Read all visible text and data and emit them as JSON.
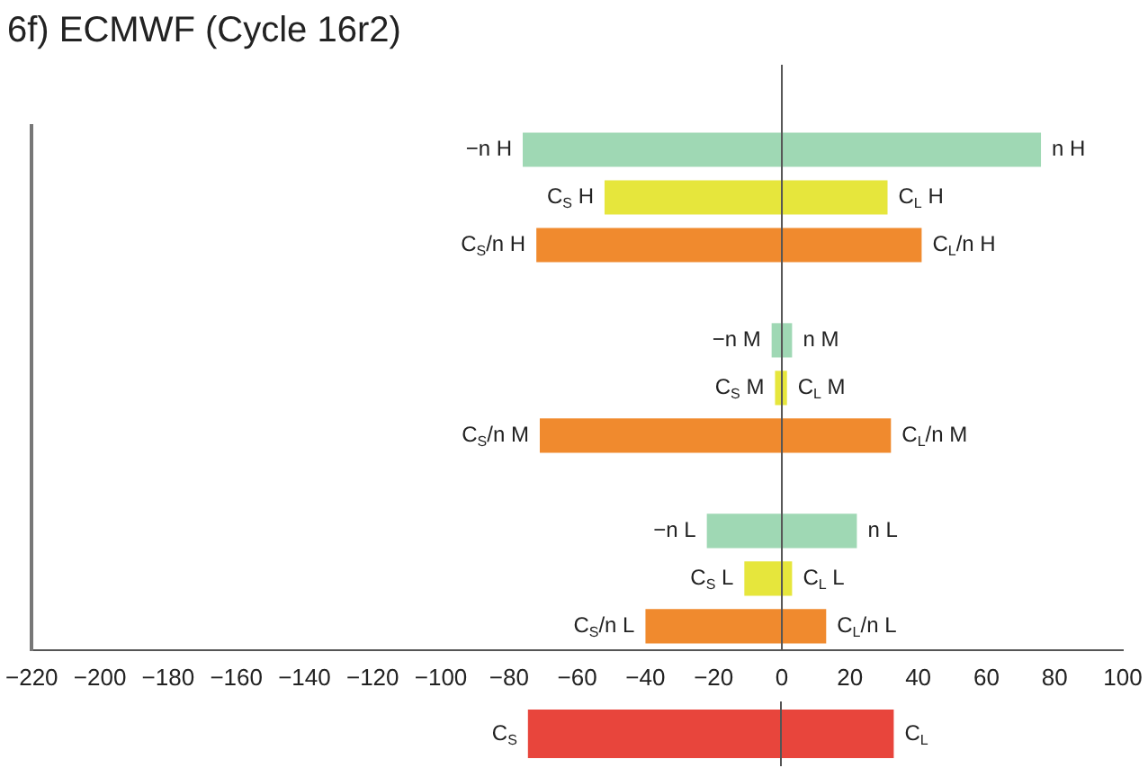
{
  "chart_data": [
    {
      "type": "bar",
      "title": "6f) ECMWF (Cycle 16r2)",
      "orientation": "horizontal",
      "categories": [
        "−n H",
        "C$_{S}$ H",
        "C$_{S}$/n H",
        null,
        "−n M",
        "C$_{S}$ M",
        "C$_{S}$/n M",
        null,
        "−n L",
        "C$_{S}$ L",
        "C$_{S}$/n L"
      ],
      "base": [
        -76,
        -52,
        -72,
        null,
        -3,
        -2,
        -71,
        null,
        -22,
        -11,
        -40
      ],
      "values": [
        152,
        83,
        113,
        null,
        6,
        3.5,
        103,
        null,
        44,
        14,
        53
      ],
      "colors": [
        "#9fd8b4",
        "#e6e63c",
        "#f08a2e",
        "#ffffff",
        "#9fd8b4",
        "#e6e63c",
        "#f08a2e",
        "#ffffff",
        "#9fd8b4",
        "#e6e63c",
        "#f08a2e"
      ],
      "value_labels": [
        "n H",
        "C$_{L}$ H",
        "C$_{L}$/n H",
        null,
        "n M",
        "C$_{L}$ M",
        "C$_{L}$/n M",
        null,
        "n L",
        "C$_{L}$ L",
        "C$_{L}$/n L"
      ],
      "xlim": [
        -220,
        100
      ],
      "xticks": [
        -220,
        -200,
        -180,
        -160,
        -140,
        -120,
        -100,
        -80,
        -60,
        -40,
        -20,
        0,
        20,
        40,
        60,
        80,
        100
      ],
      "ref_lines": [
        {
          "axis": "x",
          "value": 0,
          "color": "#555555"
        }
      ],
      "tick_labels": "x"
    },
    {
      "type": "bar",
      "orientation": "horizontal",
      "categories": [
        "C$_{S}$"
      ],
      "base": [
        -74
      ],
      "values": [
        107
      ],
      "colors": [
        "#e8453c"
      ],
      "value_labels": [
        "C$_{L}$"
      ],
      "xlim": [
        -220,
        100
      ],
      "ref_lines": [
        {
          "axis": "x",
          "value": 0,
          "color": "#555555"
        }
      ],
      "tick_labels": false
    }
  ]
}
